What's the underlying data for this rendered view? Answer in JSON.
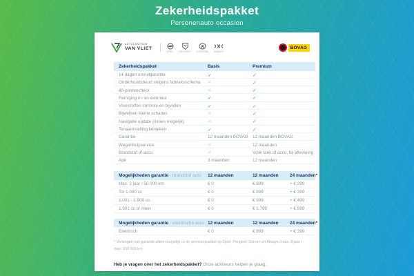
{
  "banner": {
    "title": "Zekerheidspakket",
    "subtitle": "Personenauto occasion"
  },
  "logos": {
    "dealer_top": "AUTOCENTRUM",
    "dealer_name": "VAN VLIET",
    "brands": [
      "OPEL",
      "PEUGEOT",
      "CITROËN",
      "AIWAYS"
    ],
    "bovag_label": "BOVAG"
  },
  "feature_table": {
    "headers": [
      "Zekerheidspakket",
      "Basis",
      "Premium"
    ],
    "rows": [
      {
        "label": "14 dagen omruilgarantie",
        "basis": "check",
        "premium": "check"
      },
      {
        "label": "Onderhoudsbeurt volgens fabrieksschema",
        "basis": "cross",
        "premium": "check"
      },
      {
        "label": "40-puntencheck",
        "basis": "cross",
        "premium": "check"
      },
      {
        "label": "Reiniging in- en exterieur",
        "basis": "check",
        "premium": "check"
      },
      {
        "label": "Vloeistoffen controle en bijvullen",
        "basis": "check",
        "premium": "check"
      },
      {
        "label": "Bijwerken kleine schades",
        "basis": "cross",
        "premium": "check"
      },
      {
        "label": "Navigatie update (indien mogelijk)",
        "basis": "cross",
        "premium": "check"
      },
      {
        "label": "Tenaamstelling kenteken",
        "basis": "check",
        "premium": "check"
      },
      {
        "label": "Garantie",
        "basis": "12 maanden BOVAG",
        "premium": "12 maanden BOVAG"
      },
      {
        "label": "Wegenhulpservice",
        "basis": "cross",
        "premium": "12 maanden"
      },
      {
        "label": "Brandstof of accu",
        "basis": "cross",
        "premium": "Volle tank of accu, bij aflevering"
      },
      {
        "label": "Apk",
        "basis": "3 maanden",
        "premium": "12 maanden"
      }
    ]
  },
  "fuel_table": {
    "title_bold": "Mogelijkheden garantie",
    "title_light": "- brandstof auto",
    "headers": [
      "12 maanden",
      "12 maanden",
      "24 maanden*"
    ],
    "rows": [
      {
        "label": "Max. 2 jaar / 50.000 km",
        "c1": "€ 0",
        "c2": "€ 699",
        "c3": "+ € 299"
      },
      {
        "label": "Tot 1.000 cc",
        "c1": "€ 0",
        "c2": "€ 899",
        "c3": "+ € 399"
      },
      {
        "label": "1.001 - 1.500 cc",
        "c1": "€ 0",
        "c2": "€ 999",
        "c3": "+ € 499"
      },
      {
        "label": "1.501 cc of meer",
        "c1": "€ 0",
        "c2": "€ 1.799",
        "c3": "+ € 599"
      }
    ]
  },
  "electric_table": {
    "title_bold": "Mogelijkheden garantie",
    "title_light": "- elektrische auto",
    "headers": [
      "12 maanden",
      "12 maanden",
      "24 maanden*"
    ],
    "rows": [
      {
        "label": "Elektrisch",
        "c1": "€ 0",
        "c2": "€ 899",
        "c3": "+ € 399"
      }
    ]
  },
  "footnote": "* Verlengen van garantie alleen mogelijk i.c.m. premiumpakket op Opel, Peugeot, Citroën en Aiways / max. 8 jaar / max. 150.000 km.",
  "footer": {
    "bold": "Heb je vragen over het zekerheidspakket?",
    "normal": "Onze adviseurs helpen je graag."
  },
  "colors": {
    "gradient_green": "#58bb49",
    "gradient_blue": "#1b9bd8",
    "check": "#2aabe2",
    "cross": "#c7ccd2",
    "header_bg": "#d9edf8",
    "text_dark": "#24365c",
    "text_gray": "#8e96a0",
    "bovag_yellow": "#ffd500",
    "bovag_red": "#e30613"
  }
}
